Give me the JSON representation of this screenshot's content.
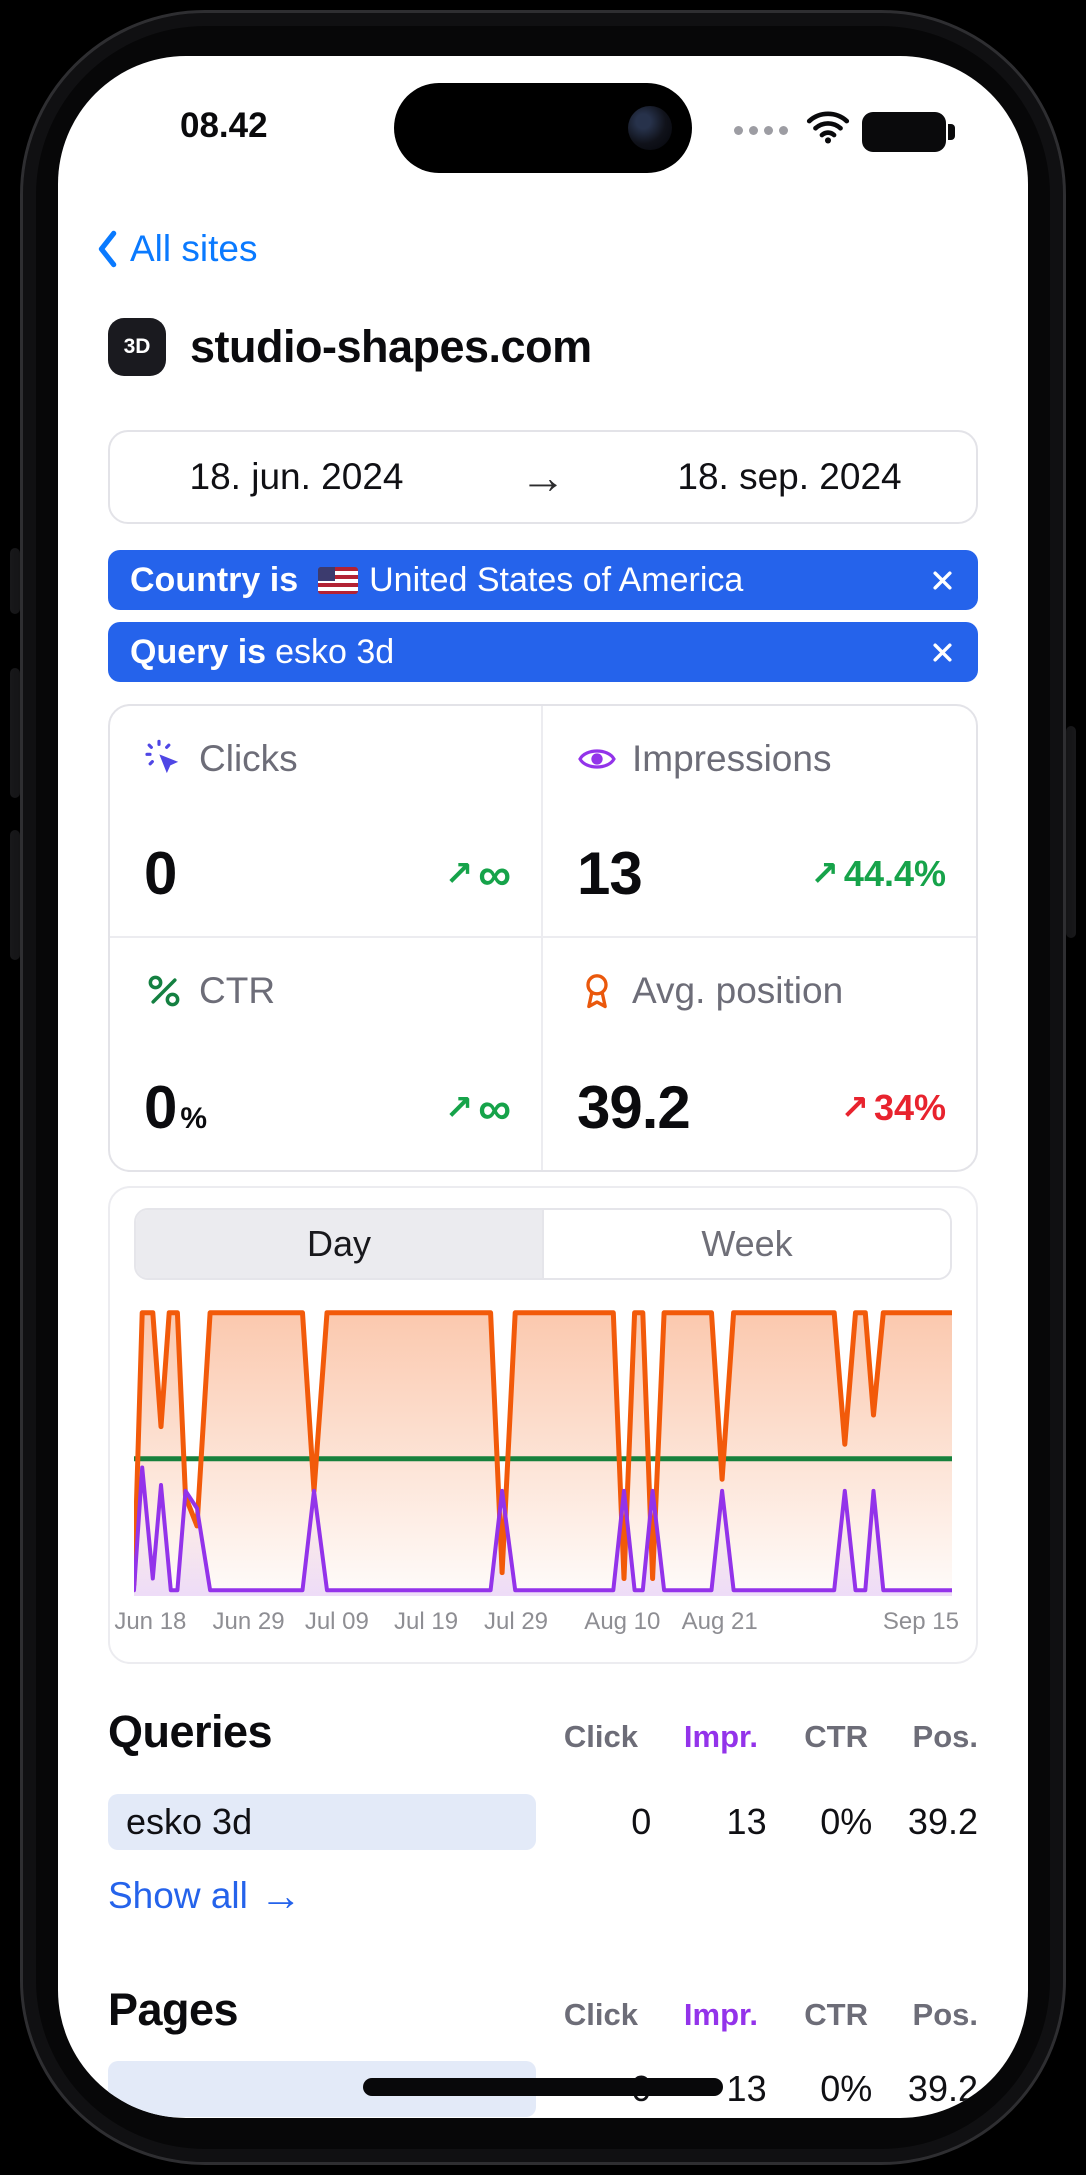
{
  "status_bar": {
    "time": "08.42"
  },
  "nav": {
    "back": "All sites"
  },
  "site": {
    "avatar": "3D",
    "name": "studio-shapes.com"
  },
  "date_range": {
    "start": "18. jun. 2024",
    "arrow": "→",
    "end": "18. sep. 2024"
  },
  "filters": {
    "country": {
      "prefix": "Country is",
      "value": "United States of America"
    },
    "query": {
      "prefix": "Query is",
      "value": "esko 3d"
    }
  },
  "stats": {
    "clicks": {
      "label": "Clicks",
      "value": "0",
      "arrow": "↗",
      "delta": "∞"
    },
    "impressions": {
      "label": "Impressions",
      "value": "13",
      "arrow": "↗",
      "delta": "44.4%"
    },
    "ctr": {
      "label": "CTR",
      "value": "0",
      "unit": "%",
      "arrow": "↗",
      "delta": "∞"
    },
    "position": {
      "label": "Avg. position",
      "value": "39.2",
      "arrow": "↗",
      "delta": "34%"
    }
  },
  "tabs": {
    "day": "Day",
    "week": "Week"
  },
  "chart_data": {
    "type": "line",
    "note": "y values are percent of plot height (no visible y axis); period Jun 18 - Sep 18 2024",
    "x_axis": {
      "tick_labels": [
        "Jun 18",
        "Jun 29",
        "Jul 09",
        "Jul 19",
        "Jul 29",
        "Aug 10",
        "Aug 21",
        "Sep 15"
      ],
      "tick_pct": [
        2,
        14,
        24.8,
        35.7,
        46.7,
        59.7,
        71.6,
        96.2
      ]
    },
    "series": [
      {
        "name": "Avg. position",
        "color": "#f25a0a",
        "fill": true,
        "stroke_width": 5,
        "points_pct": [
          [
            0,
            4
          ],
          [
            1,
            97
          ],
          [
            2.3,
            97
          ],
          [
            3.3,
            58
          ],
          [
            4.3,
            97
          ],
          [
            5.3,
            97
          ],
          [
            6.3,
            34
          ],
          [
            7.7,
            24
          ],
          [
            9.3,
            97
          ],
          [
            20.6,
            97
          ],
          [
            22,
            36
          ],
          [
            23.6,
            97
          ],
          [
            43.6,
            97
          ],
          [
            45,
            8
          ],
          [
            46.6,
            97
          ],
          [
            58.6,
            97
          ],
          [
            59.9,
            6
          ],
          [
            61.2,
            97
          ],
          [
            62.2,
            97
          ],
          [
            63.4,
            6
          ],
          [
            64.8,
            97
          ],
          [
            70.6,
            97
          ],
          [
            71.9,
            40
          ],
          [
            73.3,
            97
          ],
          [
            85.6,
            97
          ],
          [
            86.9,
            52
          ],
          [
            88.2,
            97
          ],
          [
            89.4,
            97
          ],
          [
            90.4,
            62
          ],
          [
            91.6,
            97
          ],
          [
            100,
            97
          ]
        ]
      },
      {
        "name": "Impressions",
        "color": "#9333ea",
        "fill": true,
        "stroke_width": 4,
        "points_pct": [
          [
            0,
            2
          ],
          [
            1,
            44
          ],
          [
            2.3,
            6
          ],
          [
            3.3,
            38
          ],
          [
            4.5,
            2
          ],
          [
            5.3,
            2
          ],
          [
            6.3,
            36
          ],
          [
            7.7,
            30
          ],
          [
            9.3,
            2
          ],
          [
            20.6,
            2
          ],
          [
            22,
            36
          ],
          [
            23.6,
            2
          ],
          [
            43.6,
            2
          ],
          [
            45,
            36
          ],
          [
            46.6,
            2
          ],
          [
            58.6,
            2
          ],
          [
            59.9,
            36
          ],
          [
            61.2,
            2
          ],
          [
            62.2,
            2
          ],
          [
            63.4,
            36
          ],
          [
            64.8,
            2
          ],
          [
            70.6,
            2
          ],
          [
            71.9,
            36
          ],
          [
            73.3,
            2
          ],
          [
            85.6,
            2
          ],
          [
            86.9,
            36
          ],
          [
            88.2,
            2
          ],
          [
            89.4,
            2
          ],
          [
            90.4,
            36
          ],
          [
            91.6,
            2
          ],
          [
            100,
            2
          ]
        ]
      },
      {
        "name": "CTR",
        "color": "#17813d",
        "fill": false,
        "stroke_width": 5,
        "points_pct": [
          [
            0,
            47
          ],
          [
            100,
            47
          ]
        ]
      }
    ]
  },
  "queries": {
    "title": "Queries",
    "headers": {
      "click": "Click",
      "impr": "Impr.",
      "ctr": "CTR",
      "pos": "Pos."
    },
    "rows": [
      {
        "query": "esko 3d",
        "click": "0",
        "impr": "13",
        "ctr": "0%",
        "pos": "39.2"
      }
    ],
    "show_all": "Show all",
    "show_all_arrow": "→"
  },
  "pages": {
    "title": "Pages",
    "headers": {
      "click": "Click",
      "impr": "Impr.",
      "ctr": "CTR",
      "pos": "Pos."
    },
    "rows": [
      {
        "page": "",
        "click": "0",
        "impr": "13",
        "ctr": "0%",
        "pos": "39.2"
      }
    ]
  },
  "colors": {
    "link_blue": "#0a7aff",
    "chip_blue": "#2563eb",
    "impressions_purple": "#9333ea",
    "position_orange": "#f25a0a",
    "ctr_green": "#17813d",
    "delta_green": "#16a34a",
    "delta_red": "#e8232e",
    "query_pill_bg": "#e3eaf8"
  }
}
